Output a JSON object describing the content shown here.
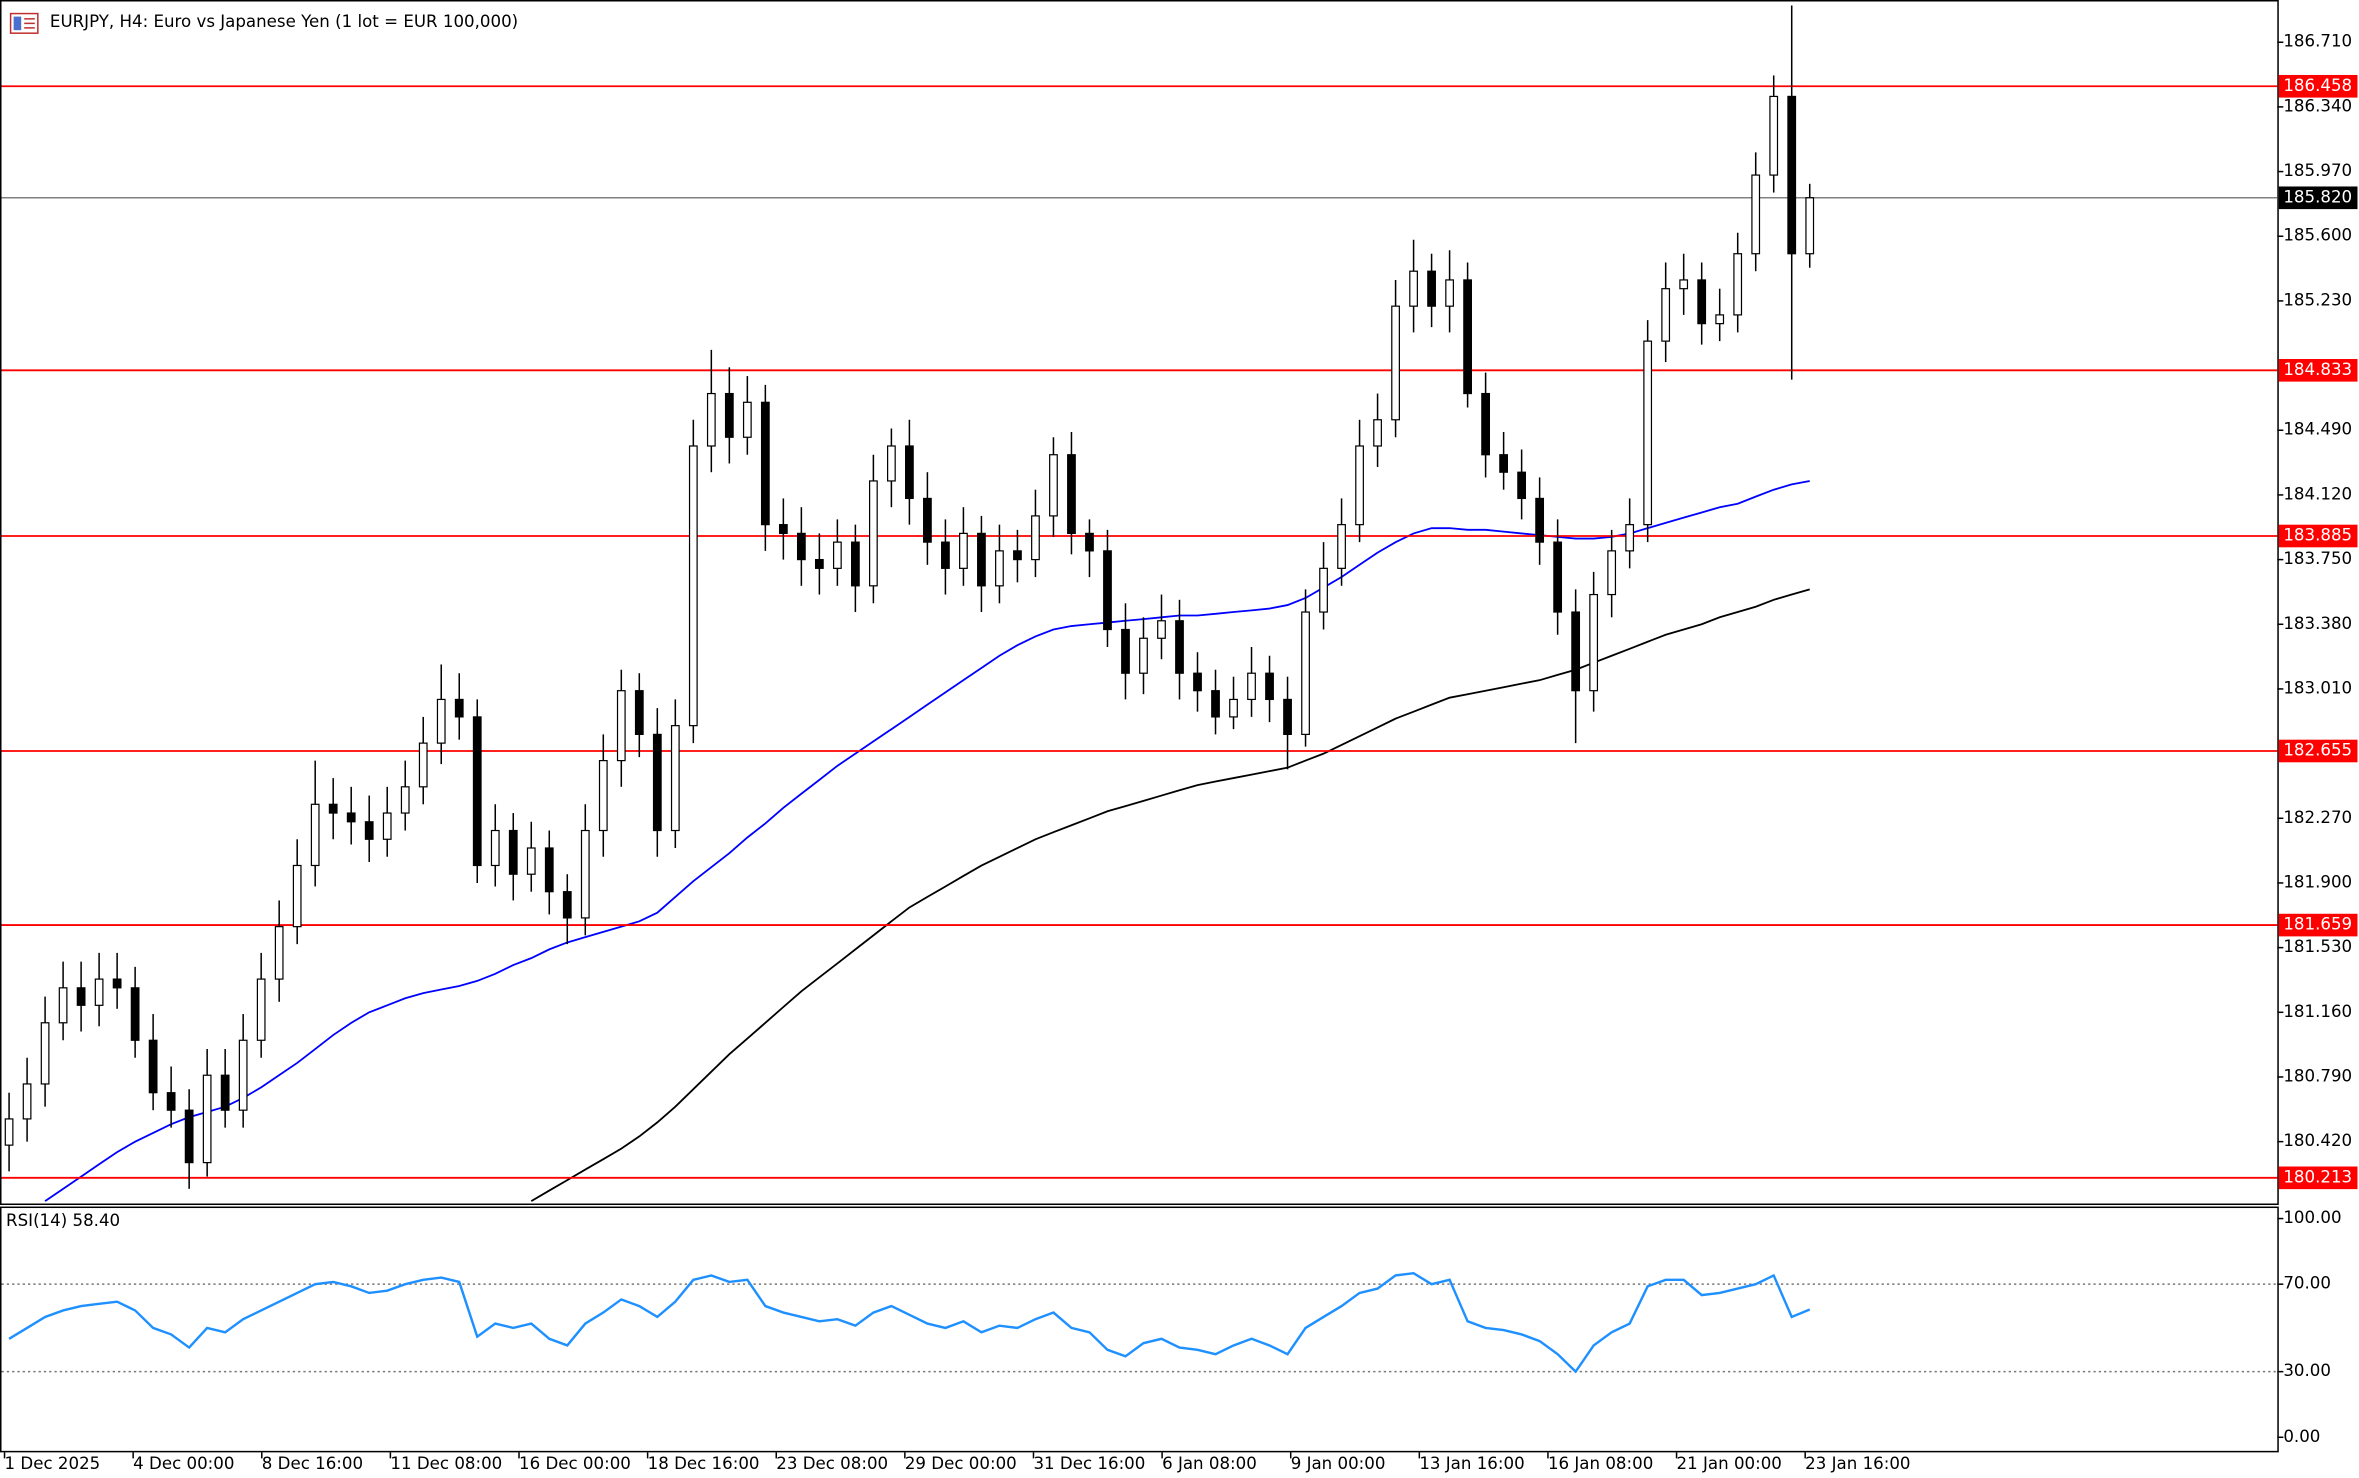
{
  "chart_data": [
    {
      "type": "candlestick",
      "title": "EURJPY, H4:  Euro vs Japanese Yen (1 lot = EUR 100,000)",
      "open": [
        180.4,
        180.55,
        180.75,
        181.1,
        181.3,
        181.2,
        181.35,
        181.3,
        181.0,
        180.7,
        180.6,
        180.3,
        180.8,
        180.6,
        181.0,
        181.35,
        181.65,
        182.0,
        182.35,
        182.3,
        182.25,
        182.15,
        182.3,
        182.45,
        182.7,
        182.95,
        182.85,
        182.0,
        182.2,
        181.95,
        182.1,
        181.85,
        181.7,
        182.2,
        182.6,
        183.0,
        182.75,
        182.2,
        182.8,
        184.4,
        184.7,
        184.45,
        184.65,
        183.95,
        183.9,
        183.75,
        183.7,
        183.85,
        183.6,
        184.2,
        184.4,
        184.1,
        183.85,
        183.7,
        183.9,
        183.6,
        183.8,
        183.75,
        184.0,
        184.35,
        183.9,
        183.8,
        183.35,
        183.1,
        183.3,
        183.4,
        183.1,
        183.0,
        182.85,
        182.95,
        183.1,
        182.95,
        182.75,
        183.45,
        183.7,
        183.95,
        184.4,
        184.55,
        185.2,
        185.4,
        185.2,
        185.35,
        184.7,
        184.35,
        184.25,
        184.1,
        183.85,
        183.45,
        183.0,
        183.55,
        183.8,
        183.95,
        185.0,
        185.3,
        185.35,
        185.1,
        185.15,
        185.5,
        185.95,
        186.4,
        185.5
      ],
      "high": [
        180.7,
        180.9,
        181.25,
        181.45,
        181.45,
        181.5,
        181.5,
        181.42,
        181.15,
        180.85,
        180.72,
        180.95,
        180.95,
        181.15,
        181.5,
        181.8,
        182.15,
        182.6,
        182.5,
        182.45,
        182.4,
        182.45,
        182.6,
        182.85,
        183.15,
        183.1,
        182.95,
        182.35,
        182.3,
        182.25,
        182.2,
        181.95,
        182.35,
        182.75,
        183.12,
        183.1,
        182.9,
        182.95,
        184.55,
        184.95,
        184.85,
        184.8,
        184.75,
        184.1,
        184.05,
        183.9,
        183.98,
        183.95,
        184.35,
        184.5,
        184.55,
        184.25,
        183.98,
        184.05,
        184.0,
        183.95,
        183.92,
        184.15,
        184.45,
        184.48,
        183.98,
        183.92,
        183.5,
        183.42,
        183.55,
        183.52,
        183.22,
        183.12,
        183.08,
        183.25,
        183.2,
        183.08,
        183.58,
        183.85,
        184.1,
        184.55,
        184.7,
        185.35,
        185.58,
        185.5,
        185.52,
        185.45,
        184.82,
        184.48,
        184.38,
        184.22,
        183.98,
        183.58,
        183.68,
        183.92,
        184.1,
        185.12,
        185.45,
        185.5,
        185.45,
        185.3,
        185.62,
        186.08,
        186.52,
        186.92,
        185.9
      ],
      "low": [
        180.25,
        180.42,
        180.62,
        181.0,
        181.05,
        181.08,
        181.18,
        180.9,
        180.6,
        180.5,
        180.15,
        180.22,
        180.5,
        180.5,
        180.9,
        181.22,
        181.55,
        181.88,
        182.15,
        182.12,
        182.02,
        182.05,
        182.2,
        182.35,
        182.58,
        182.72,
        181.9,
        181.88,
        181.8,
        181.85,
        181.72,
        181.55,
        181.6,
        182.05,
        182.45,
        182.62,
        182.05,
        182.1,
        182.7,
        184.25,
        184.3,
        184.35,
        183.8,
        183.75,
        183.6,
        183.55,
        183.6,
        183.45,
        183.5,
        184.05,
        183.95,
        183.72,
        183.55,
        183.6,
        183.45,
        183.5,
        183.62,
        183.65,
        183.88,
        183.78,
        183.65,
        183.25,
        182.95,
        182.98,
        183.18,
        182.95,
        182.88,
        182.75,
        182.78,
        182.85,
        182.82,
        182.55,
        182.68,
        183.35,
        183.6,
        183.85,
        184.28,
        184.45,
        185.05,
        185.08,
        185.05,
        184.62,
        184.22,
        184.15,
        183.98,
        183.72,
        183.32,
        182.7,
        182.88,
        183.42,
        183.7,
        183.85,
        184.88,
        185.15,
        184.98,
        185.0,
        185.05,
        185.4,
        185.85,
        184.78,
        185.42
      ],
      "close": [
        180.55,
        180.75,
        181.1,
        181.3,
        181.2,
        181.35,
        181.3,
        181.0,
        180.7,
        180.6,
        180.3,
        180.8,
        180.6,
        181.0,
        181.35,
        181.65,
        182.0,
        182.35,
        182.3,
        182.25,
        182.15,
        182.3,
        182.45,
        182.7,
        182.95,
        182.85,
        182.0,
        182.2,
        181.95,
        182.1,
        181.85,
        181.7,
        182.2,
        182.6,
        183.0,
        182.75,
        182.2,
        182.8,
        184.4,
        184.7,
        184.45,
        184.65,
        183.95,
        183.9,
        183.75,
        183.7,
        183.85,
        183.6,
        184.2,
        184.4,
        184.1,
        183.85,
        183.7,
        183.9,
        183.6,
        183.8,
        183.75,
        184.0,
        184.35,
        183.9,
        183.8,
        183.35,
        183.1,
        183.3,
        183.4,
        183.1,
        183.0,
        182.85,
        182.95,
        183.1,
        182.95,
        182.75,
        183.45,
        183.7,
        183.95,
        184.4,
        184.55,
        185.2,
        185.4,
        185.2,
        185.35,
        184.7,
        184.35,
        184.25,
        184.1,
        183.85,
        183.45,
        183.0,
        183.55,
        183.8,
        183.95,
        185.0,
        185.3,
        185.35,
        185.1,
        185.15,
        185.5,
        185.95,
        186.4,
        185.5,
        185.82
      ],
      "series": [
        {
          "color": "#0000ff",
          "values": [
            null,
            null,
            180.08,
            180.15,
            180.22,
            180.29,
            180.36,
            180.42,
            180.47,
            180.52,
            180.56,
            180.59,
            180.62,
            180.67,
            180.73,
            180.8,
            180.87,
            180.95,
            181.03,
            181.1,
            181.16,
            181.2,
            181.24,
            181.27,
            181.29,
            181.31,
            181.34,
            181.38,
            181.43,
            181.47,
            181.52,
            181.56,
            181.59,
            181.62,
            181.65,
            181.68,
            181.73,
            181.82,
            181.91,
            181.99,
            182.07,
            182.16,
            182.24,
            182.33,
            182.41,
            182.49,
            182.57,
            182.64,
            182.71,
            182.78,
            182.85,
            182.92,
            182.99,
            183.06,
            183.13,
            183.2,
            183.26,
            183.31,
            183.35,
            183.37,
            183.38,
            183.39,
            183.4,
            183.41,
            183.42,
            183.43,
            183.43,
            183.44,
            183.45,
            183.46,
            183.47,
            183.49,
            183.53,
            183.59,
            183.65,
            183.72,
            183.79,
            183.85,
            183.9,
            183.93,
            183.93,
            183.92,
            183.92,
            183.91,
            183.9,
            183.89,
            183.88,
            183.87,
            183.87,
            183.88,
            183.9,
            183.93,
            183.96,
            183.99,
            184.02,
            184.05,
            184.07,
            184.11,
            184.15,
            184.18,
            184.2
          ]
        },
        {
          "color": "#000000",
          "values": [
            null,
            null,
            null,
            null,
            null,
            null,
            null,
            null,
            null,
            null,
            null,
            null,
            null,
            null,
            null,
            null,
            null,
            null,
            null,
            null,
            null,
            null,
            null,
            null,
            null,
            null,
            null,
            null,
            null,
            180.08,
            180.14,
            180.2,
            180.26,
            180.32,
            180.38,
            180.45,
            180.53,
            180.62,
            180.72,
            180.82,
            180.92,
            181.01,
            181.1,
            181.19,
            181.28,
            181.36,
            181.44,
            181.52,
            181.6,
            181.68,
            181.76,
            181.82,
            181.88,
            181.94,
            182.0,
            182.05,
            182.1,
            182.15,
            182.19,
            182.23,
            182.27,
            182.31,
            182.34,
            182.37,
            182.4,
            182.43,
            182.46,
            182.48,
            182.5,
            182.52,
            182.54,
            182.56,
            182.6,
            182.64,
            182.69,
            182.74,
            182.79,
            182.84,
            182.88,
            182.92,
            182.96,
            182.98,
            183.0,
            183.02,
            183.04,
            183.06,
            183.09,
            183.12,
            183.16,
            183.2,
            183.24,
            183.28,
            183.32,
            183.35,
            183.38,
            183.42,
            183.45,
            183.48,
            183.52,
            183.55,
            183.58
          ]
        }
      ],
      "levels": [
        {
          "value": 186.458,
          "color": "#ff0000"
        },
        {
          "value": 184.833,
          "color": "#ff0000"
        },
        {
          "value": 183.885,
          "color": "#ff0000"
        },
        {
          "value": 182.655,
          "color": "#ff0000"
        },
        {
          "value": 181.659,
          "color": "#ff0000"
        },
        {
          "value": 180.213,
          "color": "#ff0000"
        }
      ],
      "price_line": {
        "value": 185.82,
        "label": "185.820",
        "color": "#808080"
      },
      "ylim": [
        180.066,
        186.943
      ],
      "yticks": [
        {
          "value": 186.71,
          "label": "186.710"
        },
        {
          "value": 186.34,
          "label": "186.340"
        },
        {
          "value": 185.97,
          "label": "185.970"
        },
        {
          "value": 185.6,
          "label": "185.600"
        },
        {
          "value": 185.23,
          "label": "185.230"
        },
        {
          "value": 184.49,
          "label": "184.490"
        },
        {
          "value": 184.12,
          "label": "184.120"
        },
        {
          "value": 183.75,
          "label": "183.750"
        },
        {
          "value": 183.38,
          "label": "183.380"
        },
        {
          "value": 183.01,
          "label": "183.010"
        },
        {
          "value": 182.27,
          "label": "182.270"
        },
        {
          "value": 181.9,
          "label": "181.900"
        },
        {
          "value": 181.53,
          "label": "181.530"
        },
        {
          "value": 181.16,
          "label": "181.160"
        },
        {
          "value": 180.79,
          "label": "180.790"
        },
        {
          "value": 180.42,
          "label": "180.420"
        }
      ],
      "x_labels": [
        "1 Dec 2025",
        "4 Dec 00:00",
        "8 Dec 16:00",
        "11 Dec 08:00",
        "16 Dec 00:00",
        "18 Dec 16:00",
        "23 Dec 08:00",
        "29 Dec 00:00",
        "31 Dec 16:00",
        "6 Jan 08:00",
        "9 Jan 00:00",
        "13 Jan 16:00",
        "16 Jan 08:00",
        "21 Jan 00:00",
        "23 Jan 16:00"
      ]
    },
    {
      "type": "line",
      "title": "RSI(14) 58.40",
      "color": "#1e90ff",
      "values": [
        45,
        50,
        55,
        58,
        60,
        61,
        62,
        58,
        50,
        47,
        41,
        50,
        48,
        54,
        58,
        62,
        66,
        70,
        71,
        69,
        66,
        67,
        70,
        72,
        73,
        71,
        46,
        52,
        50,
        52,
        45,
        42,
        52,
        57,
        63,
        60,
        55,
        62,
        72,
        74,
        71,
        72,
        60,
        57,
        55,
        53,
        54,
        51,
        57,
        60,
        56,
        52,
        50,
        53,
        48,
        51,
        50,
        54,
        57,
        50,
        48,
        40,
        37,
        43,
        45,
        41,
        40,
        38,
        42,
        45,
        42,
        38,
        50,
        55,
        60,
        66,
        68,
        74,
        75,
        70,
        72,
        53,
        50,
        49,
        47,
        44,
        38,
        30,
        42,
        48,
        52,
        69,
        72,
        72,
        65,
        66,
        68,
        70,
        74,
        55,
        58.4
      ],
      "ylim": [
        -6.9,
        105.5
      ],
      "yticks": [
        {
          "value": 100,
          "label": "100.00"
        },
        {
          "value": 70,
          "label": "70.00"
        },
        {
          "value": 30,
          "label": "30.00"
        },
        {
          "value": 0,
          "label": "0.00"
        }
      ],
      "dotted_levels": [
        70,
        30
      ]
    }
  ]
}
